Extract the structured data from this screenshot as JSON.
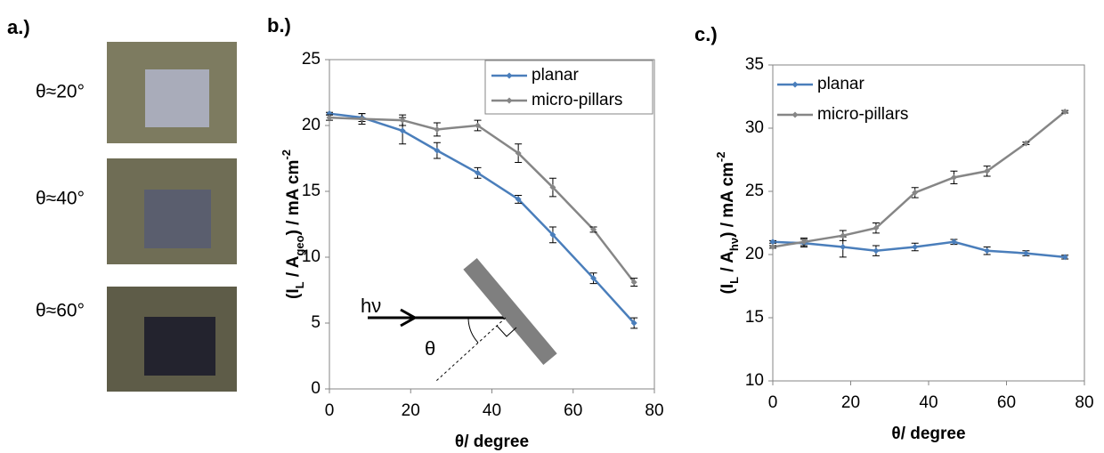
{
  "panel_a": {
    "label": "a.)",
    "photos": [
      "θ≈20°",
      "θ≈40°",
      "θ≈60°"
    ]
  },
  "chart_data": [
    {
      "type": "line",
      "panel_label": "b.)",
      "xlabel": "θ/ degree",
      "ylabel_parts": [
        "(I",
        "L",
        " / A",
        "geo",
        ") / mA cm",
        "-2"
      ],
      "x": [
        0,
        8,
        18,
        26.5,
        36.5,
        46.5,
        55,
        65,
        75
      ],
      "xlim": [
        0,
        80
      ],
      "xticks": [
        0,
        20,
        40,
        60,
        80
      ],
      "ylim": [
        0,
        25
      ],
      "yticks": [
        0,
        5,
        10,
        15,
        20,
        25
      ],
      "legend": "upper right",
      "legend_frame": true,
      "series": [
        {
          "name": "planar",
          "color": "#4a7ebb",
          "values": [
            20.9,
            20.6,
            19.6,
            18.1,
            16.4,
            14.4,
            11.7,
            8.4,
            5.0
          ],
          "errors": [
            0.1,
            0.3,
            1.0,
            0.6,
            0.4,
            0.3,
            0.6,
            0.4,
            0.4
          ]
        },
        {
          "name": "micro-pillars",
          "color": "#868686",
          "values": [
            20.6,
            20.5,
            20.4,
            19.7,
            20.0,
            17.9,
            15.3,
            12.1,
            8.1
          ],
          "errors": [
            0.2,
            0.4,
            0.4,
            0.5,
            0.4,
            0.7,
            0.7,
            0.2,
            0.3
          ]
        }
      ],
      "annotations": [
        "hν",
        "θ"
      ]
    },
    {
      "type": "line",
      "panel_label": "c.)",
      "xlabel": "θ/ degree",
      "ylabel_parts": [
        "(I",
        "L",
        " / A",
        "hν",
        ")  / mA cm",
        "-2"
      ],
      "x": [
        0,
        8,
        18,
        26.5,
        36.5,
        46.5,
        55,
        65,
        75
      ],
      "xlim": [
        0,
        80
      ],
      "xticks": [
        0,
        20,
        40,
        60,
        80
      ],
      "ylim": [
        10,
        35
      ],
      "yticks": [
        10,
        15,
        20,
        25,
        30,
        35
      ],
      "legend": "upper left",
      "legend_frame": false,
      "series": [
        {
          "name": "planar",
          "color": "#4a7ebb",
          "values": [
            21.0,
            20.9,
            20.6,
            20.3,
            20.6,
            21.0,
            20.3,
            20.1,
            19.8
          ],
          "errors": [
            0.1,
            0.3,
            0.8,
            0.4,
            0.3,
            0.2,
            0.3,
            0.2,
            0.15
          ]
        },
        {
          "name": "micro-pillars",
          "color": "#868686",
          "values": [
            20.6,
            21.0,
            21.5,
            22.1,
            24.9,
            26.1,
            26.6,
            28.8,
            31.3
          ],
          "errors": [
            0.1,
            0.3,
            0.4,
            0.4,
            0.4,
            0.5,
            0.4,
            0.1,
            0.1
          ]
        }
      ]
    }
  ]
}
